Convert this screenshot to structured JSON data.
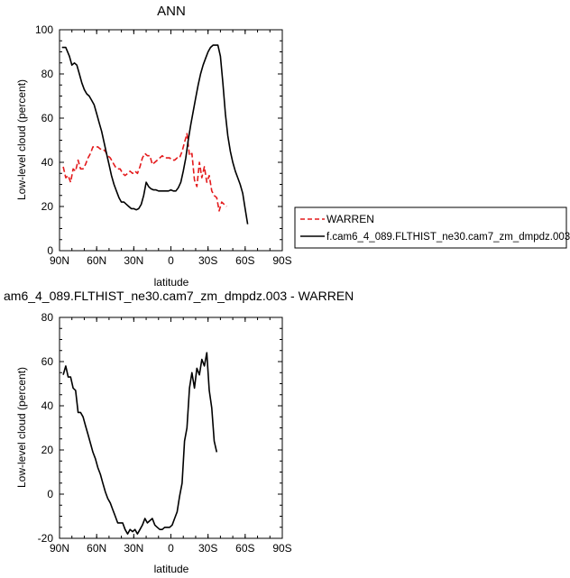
{
  "colors": {
    "warren": "#e41a1c",
    "model": "#000000",
    "axes": "#000000",
    "background": "#ffffff"
  },
  "legend": {
    "entries": [
      {
        "label": "WARREN",
        "style": "dashed",
        "color": "#e41a1c"
      },
      {
        "label": "f.cam6_4_089.FLTHIST_ne30.cam7_zm_dmpdz.003",
        "style": "solid",
        "color": "#000000"
      }
    ],
    "placement": "right of top panel"
  },
  "chart_data": [
    {
      "type": "line",
      "title": "ANN",
      "xlabel": "latitude",
      "ylabel": "Low-level cloud (percent)",
      "xlim": [
        90,
        -90
      ],
      "ylim": [
        0,
        100
      ],
      "x_ticks": [
        "90N",
        "60N",
        "30N",
        "0",
        "30S",
        "60S",
        "90S"
      ],
      "y_ticks": [
        "0",
        "20",
        "40",
        "60",
        "80",
        "100"
      ],
      "grid": false,
      "series": [
        {
          "name": "WARREN",
          "style": "dashed",
          "color": "#e41a1c",
          "x": [
            87,
            85,
            83,
            81,
            79,
            77,
            75,
            73,
            71,
            69,
            67,
            65,
            63,
            61,
            59,
            57,
            55,
            53,
            51,
            49,
            47,
            45,
            43,
            41,
            39,
            37,
            35,
            33,
            31,
            29,
            27,
            25,
            23,
            21,
            19,
            17,
            15,
            13,
            11,
            9,
            7,
            5,
            3,
            1,
            -1,
            -3,
            -5,
            -7,
            -9,
            -11,
            -13,
            -15,
            -17,
            -19,
            -21,
            -23,
            -25,
            -27,
            -29,
            -31,
            -33,
            -35,
            -37,
            -39,
            -41,
            -43,
            -45,
            -47,
            -49,
            -51,
            -53,
            -55,
            -57,
            -59,
            -61,
            -63,
            -65,
            -67,
            -69,
            -71,
            -73,
            -75,
            -77
          ],
          "y": [
            38,
            33,
            34,
            31,
            37,
            36,
            41,
            37,
            37,
            39,
            42,
            44,
            47,
            47,
            47,
            46,
            46,
            45,
            43,
            42,
            40,
            38,
            37,
            37,
            35,
            34,
            35,
            36,
            35,
            36,
            35,
            38,
            42,
            44,
            43,
            43,
            39,
            40,
            41,
            42,
            43,
            42,
            42,
            42,
            41,
            41,
            42,
            42,
            45,
            49,
            53,
            43,
            44,
            32,
            29,
            40,
            33,
            38,
            31,
            34,
            27,
            25,
            24,
            18,
            22,
            21,
            20,
            null,
            null,
            null,
            null,
            null,
            null,
            null,
            null,
            null,
            null,
            null,
            null,
            null,
            null,
            null,
            null
          ]
        },
        {
          "name": "f.cam6_4_089.FLTHIST_ne30.cam7_zm_dmpdz.003",
          "style": "solid",
          "color": "#000000",
          "x": [
            88,
            85,
            82,
            80,
            78,
            76,
            74,
            72,
            70,
            68,
            66,
            64,
            62,
            60,
            58,
            56,
            54,
            52,
            50,
            48,
            46,
            44,
            42,
            40,
            38,
            36,
            34,
            32,
            30,
            28,
            26,
            24,
            22,
            20,
            18,
            16,
            14,
            12,
            10,
            8,
            6,
            4,
            2,
            0,
            -2,
            -4,
            -6,
            -8,
            -10,
            -12,
            -14,
            -16,
            -18,
            -20,
            -22,
            -24,
            -26,
            -28,
            -30,
            -32,
            -34,
            -36,
            -38,
            -40,
            -42,
            -44,
            -46,
            -48,
            -50,
            -52,
            -54,
            -56,
            -58,
            -60,
            -62,
            -64,
            -66,
            -68,
            -70,
            -72,
            -74,
            -76,
            -78,
            -80,
            -82,
            -84,
            -86,
            -88
          ],
          "y": [
            92,
            92,
            88,
            84,
            85,
            84,
            80,
            76,
            73,
            71,
            70,
            68,
            66,
            62,
            58,
            54,
            49,
            44,
            39,
            34,
            30,
            27,
            24,
            22,
            22,
            21,
            20,
            19,
            19,
            18.5,
            19,
            21,
            25,
            31,
            29,
            28,
            27.5,
            27.5,
            27,
            27,
            27,
            27,
            27,
            27.5,
            27,
            27,
            28.5,
            31,
            36,
            42,
            50,
            57,
            63,
            69,
            75,
            80,
            84,
            87,
            90,
            92,
            93,
            93,
            93,
            88,
            76,
            62,
            52,
            45,
            40,
            36,
            33,
            30,
            26,
            19,
            12,
            null,
            null,
            null,
            null,
            null,
            null,
            null,
            null,
            null,
            null,
            null,
            null,
            null
          ]
        }
      ]
    },
    {
      "type": "line",
      "title": "am6_4_089.FLTHIST_ne30.cam7_zm_dmpdz.003 - WARREN",
      "xlabel": "latitude",
      "ylabel": "Low-level cloud (percent)",
      "xlim": [
        90,
        -90
      ],
      "ylim": [
        -20,
        80
      ],
      "x_ticks": [
        "90N",
        "60N",
        "30N",
        "0",
        "30S",
        "60S",
        "90S"
      ],
      "y_ticks": [
        "-20",
        "0",
        "20",
        "40",
        "60",
        "80"
      ],
      "grid": false,
      "series": [
        {
          "style": "solid",
          "color": "#000000",
          "x": [
            87,
            85,
            83,
            81,
            79,
            77,
            75,
            73,
            71,
            69,
            67,
            65,
            63,
            61,
            59,
            57,
            55,
            53,
            51,
            49,
            47,
            45,
            43,
            41,
            39,
            37,
            35,
            33,
            31,
            29,
            27,
            25,
            23,
            21,
            19,
            17,
            15,
            13,
            11,
            9,
            7,
            5,
            3,
            1,
            -1,
            -3,
            -5,
            -7,
            -9,
            -11,
            -13,
            -15,
            -17,
            -19,
            -21,
            -23,
            -25,
            -27,
            -29,
            -31,
            -33,
            -35,
            -37,
            -39,
            -41,
            -43,
            -45,
            -47,
            -49,
            -51,
            -53,
            -55,
            -57,
            -59,
            -61,
            -63,
            -65,
            -67,
            -69,
            -71,
            -73,
            -75,
            -77
          ],
          "y": [
            54,
            58,
            53,
            53,
            48,
            47,
            37,
            37,
            35,
            31,
            27,
            23,
            19,
            16,
            12,
            9,
            5,
            1,
            -2,
            -4,
            -7,
            -10,
            -13,
            -13,
            -13,
            -16,
            -18,
            -16,
            -17,
            -16,
            -18,
            -16,
            -14,
            -11,
            -13,
            -12,
            -11,
            -14,
            -15,
            -16,
            -16,
            -15,
            -15,
            -15,
            -14,
            -11,
            -8,
            -1,
            5,
            24,
            30,
            48,
            55,
            48,
            57,
            54,
            61,
            58,
            64,
            47,
            39,
            24,
            19,
            null,
            null,
            null,
            null,
            null,
            null,
            null,
            null,
            null,
            null,
            null,
            null,
            null,
            null,
            null,
            null,
            null,
            null,
            null,
            null
          ]
        }
      ]
    }
  ]
}
